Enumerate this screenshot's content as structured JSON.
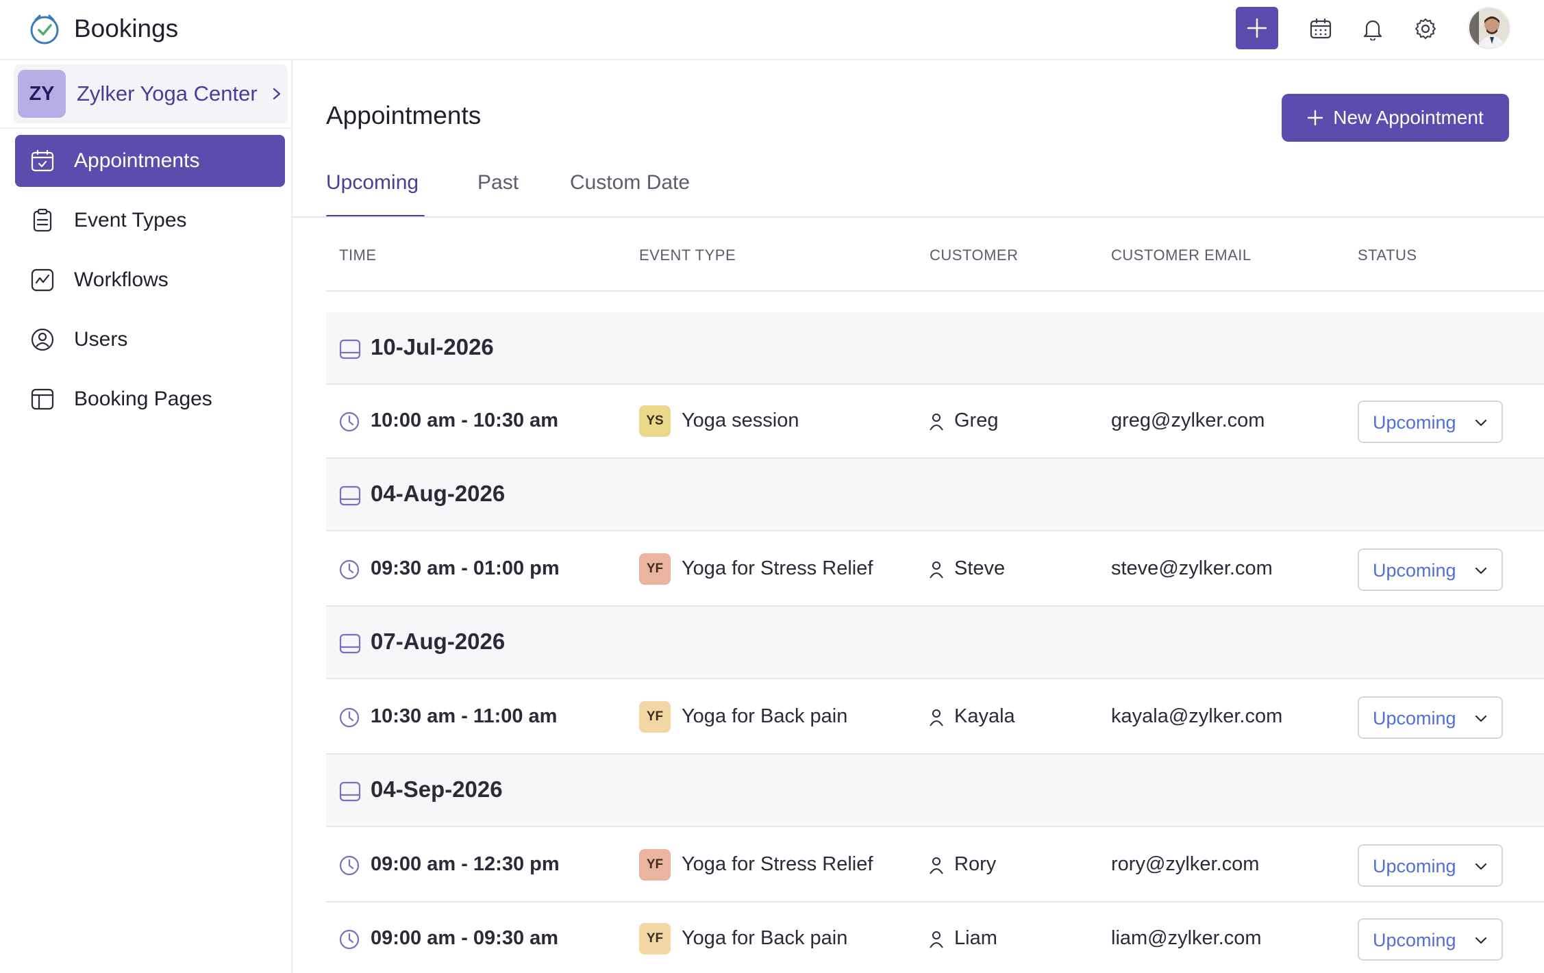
{
  "app": {
    "title": "Bookings"
  },
  "header": {
    "icons": [
      "plus-icon",
      "calendar-icon",
      "bell-icon",
      "gear-icon",
      "avatar"
    ]
  },
  "sidebar": {
    "org": {
      "initials": "ZY",
      "name": "Zylker Yoga Center"
    },
    "items": [
      {
        "label": "Appointments",
        "icon": "calendar-check-icon",
        "active": true
      },
      {
        "label": "Event Types",
        "icon": "clipboard-icon",
        "active": false
      },
      {
        "label": "Workflows",
        "icon": "workflow-icon",
        "active": false
      },
      {
        "label": "Users",
        "icon": "user-circle-icon",
        "active": false
      },
      {
        "label": "Booking Pages",
        "icon": "booking-page-icon",
        "active": false
      }
    ]
  },
  "main": {
    "title": "Appointments",
    "new_button_label": "New Appointment",
    "tabs": [
      {
        "label": "Upcoming",
        "active": true
      },
      {
        "label": "Past",
        "active": false
      },
      {
        "label": "Custom Date",
        "active": false
      }
    ],
    "columns": [
      "TIME",
      "EVENT TYPE",
      "CUSTOMER",
      "CUSTOMER EMAIL",
      "STATUS"
    ],
    "groups": [
      {
        "date": "10-Jul-2026",
        "rows": [
          {
            "time": "10:00 am - 10:30 am",
            "badge": "YS",
            "badge_color": "#ead98a",
            "event": "Yoga session",
            "customer": "Greg",
            "email": "greg@zylker.com",
            "status": "Upcoming"
          }
        ]
      },
      {
        "date": "04-Aug-2026",
        "rows": [
          {
            "time": "09:30 am - 01:00 pm",
            "badge": "YF",
            "badge_color": "#eab4a0",
            "event": "Yoga for Stress Relief",
            "customer": "Steve",
            "email": "steve@zylker.com",
            "status": "Upcoming"
          }
        ]
      },
      {
        "date": "07-Aug-2026",
        "rows": [
          {
            "time": "10:30 am - 11:00 am",
            "badge": "YF",
            "badge_color": "#f2d6a4",
            "event": "Yoga for Back pain",
            "customer": "Kayala",
            "email": "kayala@zylker.com",
            "status": "Upcoming"
          }
        ]
      },
      {
        "date": "04-Sep-2026",
        "rows": [
          {
            "time": "09:00 am - 12:30 pm",
            "badge": "YF",
            "badge_color": "#eab4a0",
            "event": "Yoga for Stress Relief",
            "customer": "Rory",
            "email": "rory@zylker.com",
            "status": "Upcoming"
          },
          {
            "time": "09:00 am - 09:30 am",
            "badge": "YF",
            "badge_color": "#f2d6a4",
            "event": "Yoga for Back pain",
            "customer": "Liam",
            "email": "liam@zylker.com",
            "status": "Upcoming"
          }
        ]
      }
    ]
  },
  "colors": {
    "accent": "#5b4cad",
    "status_text": "#4f6ed9"
  }
}
